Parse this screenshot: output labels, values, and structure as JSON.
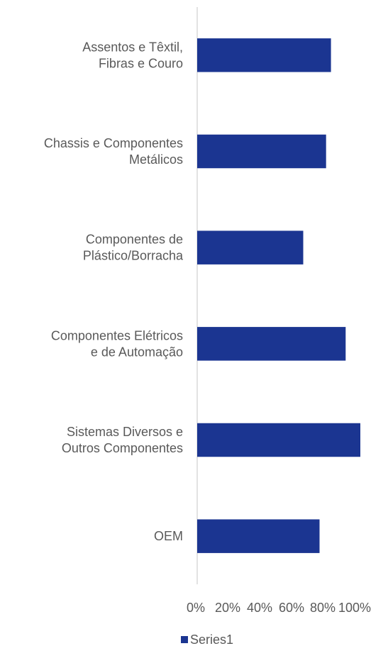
{
  "chart_data": {
    "type": "bar",
    "orientation": "horizontal",
    "categories": [
      [
        "Assentos e Têxtil,",
        "Fibras e Couro"
      ],
      [
        "Chassis e Componentes",
        "Metálicos"
      ],
      [
        "Componentes de",
        "Plástico/Borracha"
      ],
      [
        "Componentes Elétricos",
        "e de Automação"
      ],
      [
        "Sistemas Diversos e",
        "Outros Componentes"
      ],
      [
        "OEM"
      ]
    ],
    "series": [
      {
        "name": "Series1",
        "values": [
          0.82,
          0.79,
          0.65,
          0.91,
          1.0,
          0.75
        ],
        "color": "#1B3591"
      }
    ],
    "xlim": [
      0,
      1
    ],
    "xticks": [
      "0%",
      "20%",
      "40%",
      "60%",
      "80%",
      "100%"
    ],
    "grid": false,
    "legend": "bottom"
  }
}
